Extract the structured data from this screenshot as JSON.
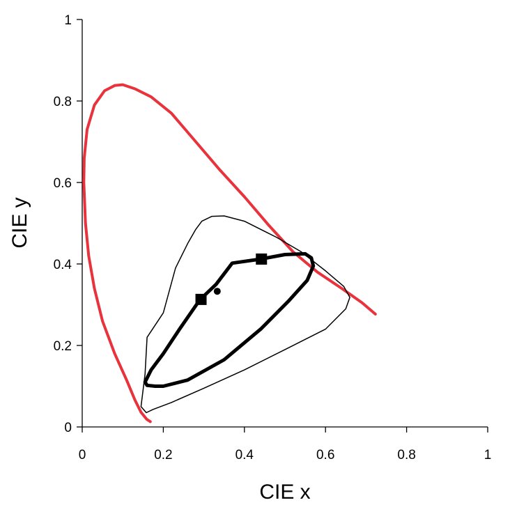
{
  "chart_data": {
    "type": "line",
    "title": "",
    "xlabel": "CIE x",
    "ylabel": "CIE y",
    "xlim": [
      0,
      1
    ],
    "ylim": [
      0,
      1
    ],
    "xticks": [
      0,
      0.2,
      0.4,
      0.6,
      0.8,
      1
    ],
    "yticks": [
      0,
      0.2,
      0.4,
      0.6,
      0.8,
      1
    ],
    "xtick_labels": [
      "0",
      "0.2",
      "0.4",
      "0.6",
      "0.8",
      "1"
    ],
    "ytick_labels": [
      "0",
      "0.2",
      "0.4",
      "0.6",
      "0.8",
      "1"
    ],
    "grid": false,
    "legend": false,
    "series": [
      {
        "style": "spectral-locus",
        "color": "#e8323c",
        "points": [
          [
            0.168,
            0.013
          ],
          [
            0.159,
            0.019
          ],
          [
            0.145,
            0.036
          ],
          [
            0.13,
            0.066
          ],
          [
            0.11,
            0.114
          ],
          [
            0.08,
            0.18
          ],
          [
            0.05,
            0.26
          ],
          [
            0.03,
            0.34
          ],
          [
            0.016,
            0.42
          ],
          [
            0.008,
            0.5
          ],
          [
            0.004,
            0.6
          ],
          [
            0.005,
            0.66
          ],
          [
            0.012,
            0.73
          ],
          [
            0.03,
            0.79
          ],
          [
            0.055,
            0.825
          ],
          [
            0.08,
            0.838
          ],
          [
            0.1,
            0.84
          ],
          [
            0.13,
            0.83
          ],
          [
            0.17,
            0.81
          ],
          [
            0.22,
            0.77
          ],
          [
            0.28,
            0.7
          ],
          [
            0.34,
            0.63
          ],
          [
            0.4,
            0.565
          ],
          [
            0.46,
            0.495
          ],
          [
            0.52,
            0.43
          ],
          [
            0.58,
            0.38
          ],
          [
            0.64,
            0.34
          ],
          [
            0.69,
            0.305
          ],
          [
            0.723,
            0.277
          ]
        ]
      },
      {
        "style": "outer-gamut",
        "color": "#000000",
        "points": [
          [
            0.158,
            0.035
          ],
          [
            0.175,
            0.043
          ],
          [
            0.22,
            0.06
          ],
          [
            0.3,
            0.095
          ],
          [
            0.4,
            0.14
          ],
          [
            0.5,
            0.19
          ],
          [
            0.6,
            0.24
          ],
          [
            0.65,
            0.29
          ],
          [
            0.66,
            0.318
          ],
          [
            0.645,
            0.345
          ],
          [
            0.6,
            0.383
          ],
          [
            0.54,
            0.43
          ],
          [
            0.48,
            0.465
          ],
          [
            0.4,
            0.505
          ],
          [
            0.35,
            0.518
          ],
          [
            0.32,
            0.517
          ],
          [
            0.295,
            0.505
          ],
          [
            0.28,
            0.485
          ],
          [
            0.26,
            0.45
          ],
          [
            0.23,
            0.39
          ],
          [
            0.2,
            0.28
          ],
          [
            0.16,
            0.22
          ],
          [
            0.155,
            0.13
          ],
          [
            0.145,
            0.05
          ],
          [
            0.158,
            0.035
          ]
        ]
      },
      {
        "style": "inner-loop",
        "color": "#000000",
        "points": [
          [
            0.2,
            0.1
          ],
          [
            0.26,
            0.115
          ],
          [
            0.35,
            0.165
          ],
          [
            0.44,
            0.24
          ],
          [
            0.51,
            0.31
          ],
          [
            0.555,
            0.36
          ],
          [
            0.57,
            0.395
          ],
          [
            0.565,
            0.415
          ],
          [
            0.55,
            0.425
          ],
          [
            0.5,
            0.423
          ],
          [
            0.44,
            0.412
          ],
          [
            0.37,
            0.402
          ],
          [
            0.33,
            0.35
          ],
          [
            0.29,
            0.312
          ],
          [
            0.24,
            0.24
          ],
          [
            0.2,
            0.18
          ],
          [
            0.17,
            0.14
          ],
          [
            0.155,
            0.11
          ],
          [
            0.16,
            0.102
          ],
          [
            0.18,
            0.1
          ],
          [
            0.2,
            0.1
          ]
        ]
      }
    ],
    "markers": [
      {
        "shape": "square",
        "x": 0.293,
        "y": 0.313,
        "color": "#000000"
      },
      {
        "shape": "square",
        "x": 0.442,
        "y": 0.412,
        "color": "#000000"
      },
      {
        "shape": "circle",
        "x": 0.333,
        "y": 0.333,
        "color": "#000000"
      }
    ]
  }
}
